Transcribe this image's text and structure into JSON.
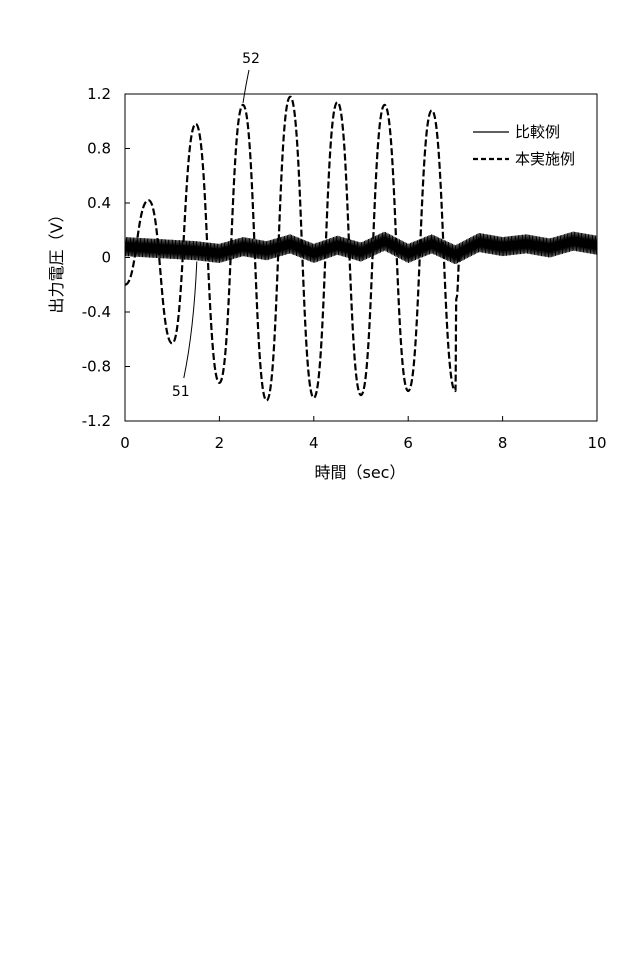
{
  "chart_data": {
    "type": "line",
    "xlabel": "時間（sec）",
    "ylabel": "出力電圧（V）",
    "xlim": [
      0,
      10
    ],
    "ylim": [
      -1.2,
      1.2
    ],
    "xticks": [
      "0",
      "2",
      "4",
      "6",
      "8",
      "10"
    ],
    "yticks": [
      "1.2",
      "0.8",
      "0.4",
      "0",
      "-0.4",
      "-0.8",
      "-1.2"
    ],
    "grid": false,
    "legend": "top-right",
    "series": [
      {
        "name": "比較例",
        "style": "solid",
        "color": "#000000",
        "x": [
          0,
          0.5,
          1.0,
          1.5,
          2.0,
          2.5,
          3.0,
          3.5,
          4.0,
          4.5,
          5.0,
          5.5,
          6.0,
          6.5,
          7.0,
          7.5,
          8.0,
          8.5,
          9.0,
          9.5,
          10.0
        ],
        "y": [
          0.08,
          0.07,
          0.06,
          0.05,
          0.03,
          0.08,
          0.05,
          0.1,
          0.03,
          0.09,
          0.04,
          0.12,
          0.03,
          0.1,
          0.02,
          0.11,
          0.08,
          0.1,
          0.07,
          0.12,
          0.09
        ],
        "band": 0.07
      },
      {
        "name": "本実施例",
        "style": "dashed",
        "color": "#000000",
        "x": [
          0,
          0.5,
          1.0,
          1.5,
          2.0,
          2.5,
          3.0,
          3.5,
          4.0,
          4.5,
          5.0,
          5.5,
          6.0,
          6.5,
          7.0,
          7.02,
          7.1
        ],
        "y": [
          -0.2,
          0.42,
          -0.63,
          0.98,
          -0.92,
          1.12,
          -1.05,
          1.18,
          -1.03,
          1.14,
          -1.01,
          1.12,
          -0.98,
          1.08,
          -0.98,
          -0.3,
          0.05
        ]
      }
    ],
    "annotations": [
      {
        "text": "52",
        "x": 2.5,
        "y": 1.12
      },
      {
        "text": "51",
        "x": 1.5,
        "y": 0.0
      }
    ]
  }
}
